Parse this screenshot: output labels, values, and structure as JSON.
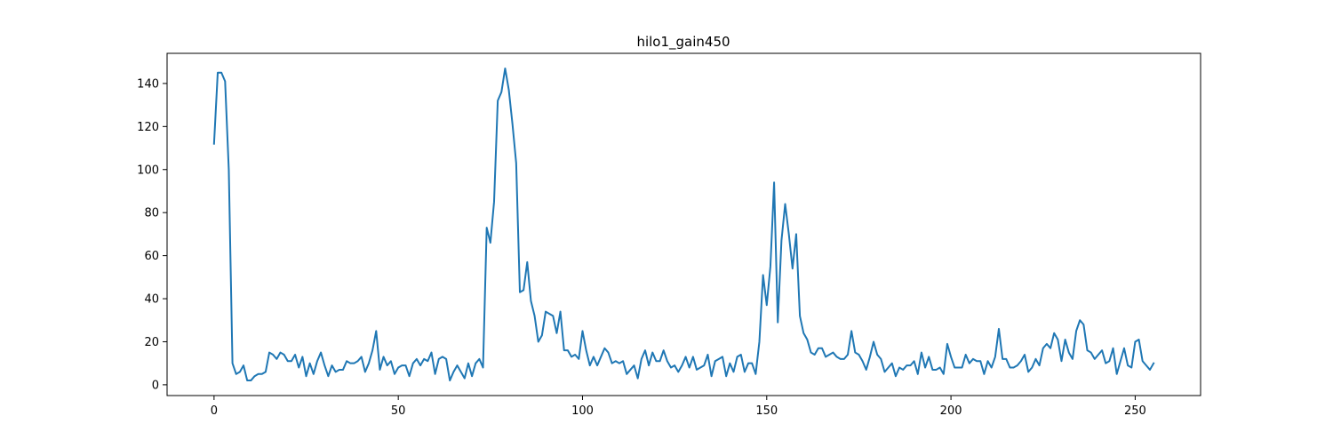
{
  "chart_data": {
    "type": "line",
    "title": "hilo1_gain450",
    "xlabel": "",
    "ylabel": "",
    "xlim": [
      -12.75,
      267.75
    ],
    "ylim": [
      -5,
      154
    ],
    "xticks": [
      0,
      50,
      100,
      150,
      200,
      250
    ],
    "yticks": [
      0,
      20,
      40,
      60,
      80,
      100,
      120,
      140
    ],
    "grid": false,
    "series": [
      {
        "color": "#1f77b4",
        "x": [
          0,
          1,
          2,
          3,
          4,
          5,
          6,
          7,
          8,
          9,
          10,
          11,
          12,
          13,
          14,
          15,
          16,
          17,
          18,
          19,
          20,
          21,
          22,
          23,
          24,
          25,
          26,
          27,
          28,
          29,
          30,
          31,
          32,
          33,
          34,
          35,
          36,
          37,
          38,
          39,
          40,
          41,
          42,
          43,
          44,
          45,
          46,
          47,
          48,
          49,
          50,
          51,
          52,
          53,
          54,
          55,
          56,
          57,
          58,
          59,
          60,
          61,
          62,
          63,
          64,
          65,
          66,
          67,
          68,
          69,
          70,
          71,
          72,
          73,
          74,
          75,
          76,
          77,
          78,
          79,
          80,
          81,
          82,
          83,
          84,
          85,
          86,
          87,
          88,
          89,
          90,
          91,
          92,
          93,
          94,
          95,
          96,
          97,
          98,
          99,
          100,
          101,
          102,
          103,
          104,
          105,
          106,
          107,
          108,
          109,
          110,
          111,
          112,
          113,
          114,
          115,
          116,
          117,
          118,
          119,
          120,
          121,
          122,
          123,
          124,
          125,
          126,
          127,
          128,
          129,
          130,
          131,
          132,
          133,
          134,
          135,
          136,
          137,
          138,
          139,
          140,
          141,
          142,
          143,
          144,
          145,
          146,
          147,
          148,
          149,
          150,
          151,
          152,
          153,
          154,
          155,
          156,
          157,
          158,
          159,
          160,
          161,
          162,
          163,
          164,
          165,
          166,
          167,
          168,
          169,
          170,
          171,
          172,
          173,
          174,
          175,
          176,
          177,
          178,
          179,
          180,
          181,
          182,
          183,
          184,
          185,
          186,
          187,
          188,
          189,
          190,
          191,
          192,
          193,
          194,
          195,
          196,
          197,
          198,
          199,
          200,
          201,
          202,
          203,
          204,
          205,
          206,
          207,
          208,
          209,
          210,
          211,
          212,
          213,
          214,
          215,
          216,
          217,
          218,
          219,
          220,
          221,
          222,
          223,
          224,
          225,
          226,
          227,
          228,
          229,
          230,
          231,
          232,
          233,
          234,
          235,
          236,
          237,
          238,
          239,
          240,
          241,
          242,
          243,
          244,
          245,
          246,
          247,
          248,
          249,
          250,
          251,
          252,
          253,
          254,
          255
        ],
        "values": [
          112,
          145,
          145,
          141,
          100,
          10,
          5,
          6,
          9,
          2,
          2,
          4,
          5,
          5,
          6,
          15,
          14,
          12,
          15,
          14,
          11,
          11,
          14,
          8,
          13,
          4,
          10,
          5,
          11,
          15,
          9,
          4,
          9,
          6,
          7,
          7,
          11,
          10,
          10,
          11,
          13,
          6,
          10,
          16,
          25,
          7,
          13,
          9,
          11,
          5,
          8,
          9,
          9,
          4,
          10,
          12,
          9,
          12,
          11,
          15,
          5,
          12,
          13,
          12,
          2,
          6,
          9,
          6,
          3,
          10,
          4,
          10,
          12,
          8,
          73,
          66,
          85,
          132,
          136,
          147,
          137,
          121,
          103,
          43,
          44,
          57,
          39,
          32,
          20,
          23,
          34,
          33,
          32,
          24,
          34,
          16,
          16,
          13,
          14,
          12,
          25,
          16,
          9,
          13,
          9,
          13,
          17,
          15,
          10,
          11,
          10,
          11,
          5,
          7,
          9,
          3,
          12,
          16,
          9,
          15,
          11,
          11,
          16,
          11,
          8,
          9,
          6,
          9,
          13,
          8,
          13,
          7,
          8,
          9,
          14,
          4,
          11,
          12,
          13,
          4,
          10,
          6,
          13,
          14,
          6,
          10,
          10,
          5,
          20,
          51,
          37,
          55,
          94,
          29,
          67,
          84,
          70,
          54,
          70,
          32,
          24,
          21,
          15,
          14,
          17,
          17,
          13,
          14,
          15,
          13,
          12,
          12,
          14,
          25,
          15,
          14,
          11,
          7,
          13,
          20,
          14,
          12,
          6,
          8,
          10,
          4,
          8,
          7,
          9,
          9,
          11,
          5,
          15,
          8,
          13,
          7,
          7,
          8,
          5,
          19,
          13,
          8,
          8,
          8,
          14,
          10,
          12,
          11,
          11,
          5,
          11,
          8,
          13,
          26,
          12,
          12,
          8,
          8,
          9,
          11,
          14,
          6,
          8,
          12,
          9,
          17,
          19,
          17,
          24,
          21,
          11,
          21,
          15,
          12,
          25,
          30,
          28,
          16,
          15,
          12,
          14,
          16,
          10,
          11,
          17,
          5,
          11,
          17,
          9,
          8,
          20,
          21,
          11,
          9,
          7,
          10
        ]
      }
    ]
  }
}
